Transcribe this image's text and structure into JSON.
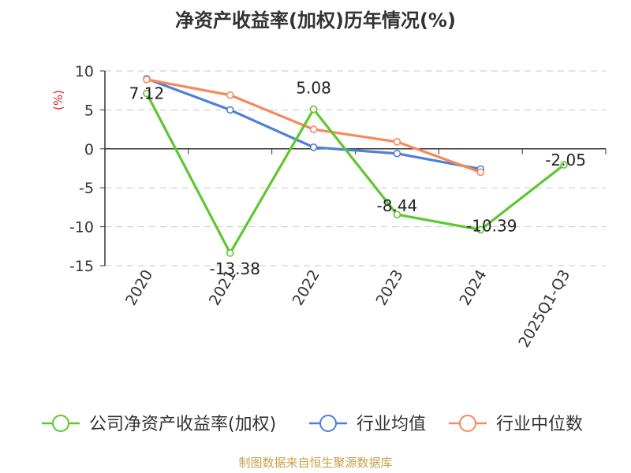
{
  "chart_data": {
    "type": "line",
    "title": "净资产收益率(加权)历年情况(%)",
    "ylabel": "(%)",
    "xlabel": "",
    "categories": [
      "2020",
      "2021",
      "2022",
      "2023",
      "2024",
      "2025Q1-Q3"
    ],
    "ylim": [
      -15,
      10
    ],
    "yticks": [
      10,
      5,
      0,
      -5,
      -10,
      -15
    ],
    "grid": true,
    "legend_position": "bottom",
    "series": [
      {
        "name": "公司净资产收益率(加权)",
        "color": "#5ec72f",
        "values": [
          7.12,
          -13.38,
          5.08,
          -8.44,
          -10.39,
          -2.05
        ],
        "labels": [
          "7.12",
          "-13.38",
          "5.08",
          "-8.44",
          "-10.39",
          "-2.05"
        ]
      },
      {
        "name": "行业均值",
        "color": "#4e7fd9",
        "values": [
          9.0,
          5.0,
          0.2,
          -0.6,
          -2.6,
          null
        ]
      },
      {
        "name": "行业中位数",
        "color": "#f5895a",
        "values": [
          8.9,
          6.9,
          2.5,
          0.9,
          -3.0,
          null
        ]
      }
    ],
    "source": "制图数据来自恒生聚源数据库",
    "source_color": "#c8a14a",
    "ylabel_color": "#e02020"
  }
}
